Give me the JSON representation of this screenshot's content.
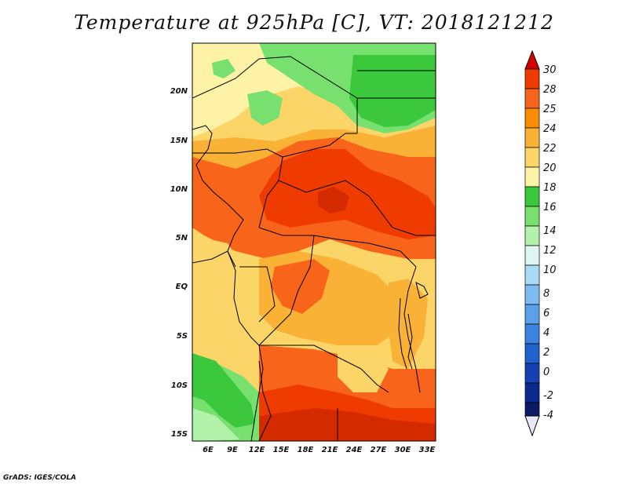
{
  "title": "Temperature at 925hPa [C], VT: 2018121212",
  "credit": "GrADS: IGES/COLA",
  "map": {
    "lon_labels": [
      "6E",
      "9E",
      "12E",
      "15E",
      "18E",
      "21E",
      "24E",
      "27E",
      "30E",
      "33E"
    ],
    "lat_labels": [
      "20N",
      "15N",
      "10N",
      "5N",
      "EQ",
      "5S",
      "10S",
      "15S"
    ]
  },
  "colorbar": {
    "levels": [
      "30",
      "28",
      "25",
      "24",
      "22",
      "20",
      "18",
      "16",
      "14",
      "12",
      "10",
      "8",
      "6",
      "4",
      "2",
      "0",
      "-2",
      "-4"
    ],
    "colors": {
      "above_30": "#d42a00",
      "28_30": "#ef3b00",
      "25_28": "#f7641a",
      "24_25": "#fb8c00",
      "22_24": "#f9b236",
      "20_22": "#fbd568",
      "18_20": "#fdf3a6",
      "16_18": "#3cc83c",
      "14_16": "#78e06e",
      "12_14": "#b2f2aa",
      "10_12": "#def5f0",
      "8_10": "#a8dcf5",
      "6_8": "#7cbcf0",
      "4_6": "#5aa0ea",
      "2_4": "#3c82e0",
      "0_2": "#2062d0",
      "-2_0": "#1442b4",
      "-4_-2": "#0a2a8c",
      "below_-4": "#0a1a64",
      "above_30_arrow": "#d40000",
      "below_-4_arrow": "#e8e8f8"
    }
  }
}
